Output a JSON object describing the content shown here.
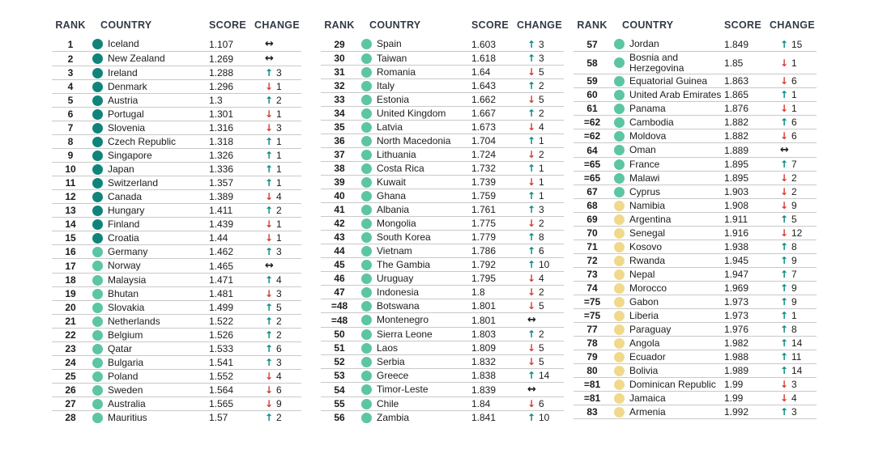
{
  "table": {
    "headers": {
      "rank": "RANK",
      "country": "COUNTRY",
      "score": "SCORE",
      "change": "CHANGE"
    },
    "tiers": {
      "very_high": "#10847a",
      "high": "#5cc5a4",
      "medium": "#f0d98b"
    },
    "change_colors": {
      "up": "#00897e",
      "down": "#d63c32",
      "same": "#1a1a1a"
    },
    "change_glyphs": {
      "up": "↑",
      "down": "↓",
      "same": "↔"
    },
    "columns": [
      {
        "rows": [
          {
            "rank": "1",
            "country": "Iceland",
            "score": "1.107",
            "tier": "very_high",
            "change_dir": "same",
            "change_value": ""
          },
          {
            "rank": "2",
            "country": "New Zealand",
            "score": "1.269",
            "tier": "very_high",
            "change_dir": "same",
            "change_value": ""
          },
          {
            "rank": "3",
            "country": "Ireland",
            "score": "1.288",
            "tier": "very_high",
            "change_dir": "up",
            "change_value": "3"
          },
          {
            "rank": "4",
            "country": "Denmark",
            "score": "1.296",
            "tier": "very_high",
            "change_dir": "down",
            "change_value": "1"
          },
          {
            "rank": "5",
            "country": "Austria",
            "score": "1.3",
            "tier": "very_high",
            "change_dir": "up",
            "change_value": "2"
          },
          {
            "rank": "6",
            "country": "Portugal",
            "score": "1.301",
            "tier": "very_high",
            "change_dir": "down",
            "change_value": "1"
          },
          {
            "rank": "7",
            "country": "Slovenia",
            "score": "1.316",
            "tier": "very_high",
            "change_dir": "down",
            "change_value": "3"
          },
          {
            "rank": "8",
            "country": "Czech Republic",
            "score": "1.318",
            "tier": "very_high",
            "change_dir": "up",
            "change_value": "1"
          },
          {
            "rank": "9",
            "country": "Singapore",
            "score": "1.326",
            "tier": "very_high",
            "change_dir": "up",
            "change_value": "1"
          },
          {
            "rank": "10",
            "country": "Japan",
            "score": "1.336",
            "tier": "very_high",
            "change_dir": "up",
            "change_value": "1"
          },
          {
            "rank": "11",
            "country": "Switzerland",
            "score": "1.357",
            "tier": "very_high",
            "change_dir": "up",
            "change_value": "1"
          },
          {
            "rank": "12",
            "country": "Canada",
            "score": "1.389",
            "tier": "very_high",
            "change_dir": "down",
            "change_value": "4"
          },
          {
            "rank": "13",
            "country": "Hungary",
            "score": "1.411",
            "tier": "very_high",
            "change_dir": "up",
            "change_value": "2"
          },
          {
            "rank": "14",
            "country": "Finland",
            "score": "1.439",
            "tier": "very_high",
            "change_dir": "down",
            "change_value": "1"
          },
          {
            "rank": "15",
            "country": "Croatia",
            "score": "1.44",
            "tier": "very_high",
            "change_dir": "down",
            "change_value": "1"
          },
          {
            "rank": "16",
            "country": "Germany",
            "score": "1.462",
            "tier": "high",
            "change_dir": "up",
            "change_value": "3"
          },
          {
            "rank": "17",
            "country": "Norway",
            "score": "1.465",
            "tier": "high",
            "change_dir": "same",
            "change_value": ""
          },
          {
            "rank": "18",
            "country": "Malaysia",
            "score": "1.471",
            "tier": "high",
            "change_dir": "up",
            "change_value": "4"
          },
          {
            "rank": "19",
            "country": "Bhutan",
            "score": "1.481",
            "tier": "high",
            "change_dir": "down",
            "change_value": "3"
          },
          {
            "rank": "20",
            "country": "Slovakia",
            "score": "1.499",
            "tier": "high",
            "change_dir": "up",
            "change_value": "5"
          },
          {
            "rank": "21",
            "country": "Netherlands",
            "score": "1.522",
            "tier": "high",
            "change_dir": "up",
            "change_value": "2"
          },
          {
            "rank": "22",
            "country": "Belgium",
            "score": "1.526",
            "tier": "high",
            "change_dir": "up",
            "change_value": "2"
          },
          {
            "rank": "23",
            "country": "Qatar",
            "score": "1.533",
            "tier": "high",
            "change_dir": "up",
            "change_value": "6"
          },
          {
            "rank": "24",
            "country": "Bulgaria",
            "score": "1.541",
            "tier": "high",
            "change_dir": "up",
            "change_value": "3"
          },
          {
            "rank": "25",
            "country": "Poland",
            "score": "1.552",
            "tier": "high",
            "change_dir": "down",
            "change_value": "4"
          },
          {
            "rank": "26",
            "country": "Sweden",
            "score": "1.564",
            "tier": "high",
            "change_dir": "down",
            "change_value": "6"
          },
          {
            "rank": "27",
            "country": "Australia",
            "score": "1.565",
            "tier": "high",
            "change_dir": "down",
            "change_value": "9"
          },
          {
            "rank": "28",
            "country": "Mauritius",
            "score": "1.57",
            "tier": "high",
            "change_dir": "up",
            "change_value": "2"
          }
        ]
      },
      {
        "rows": [
          {
            "rank": "29",
            "country": "Spain",
            "score": "1.603",
            "tier": "high",
            "change_dir": "up",
            "change_value": "3"
          },
          {
            "rank": "30",
            "country": "Taiwan",
            "score": "1.618",
            "tier": "high",
            "change_dir": "up",
            "change_value": "3"
          },
          {
            "rank": "31",
            "country": "Romania",
            "score": "1.64",
            "tier": "high",
            "change_dir": "down",
            "change_value": "5"
          },
          {
            "rank": "32",
            "country": "Italy",
            "score": "1.643",
            "tier": "high",
            "change_dir": "up",
            "change_value": "2"
          },
          {
            "rank": "33",
            "country": "Estonia",
            "score": "1.662",
            "tier": "high",
            "change_dir": "down",
            "change_value": "5"
          },
          {
            "rank": "34",
            "country": "United Kingdom",
            "score": "1.667",
            "tier": "high",
            "change_dir": "up",
            "change_value": "2"
          },
          {
            "rank": "35",
            "country": "Latvia",
            "score": "1.673",
            "tier": "high",
            "change_dir": "down",
            "change_value": "4"
          },
          {
            "rank": "36",
            "country": "North Macedonia",
            "score": "1.704",
            "tier": "high",
            "change_dir": "up",
            "change_value": "1"
          },
          {
            "rank": "37",
            "country": "Lithuania",
            "score": "1.724",
            "tier": "high",
            "change_dir": "down",
            "change_value": "2"
          },
          {
            "rank": "38",
            "country": "Costa Rica",
            "score": "1.732",
            "tier": "high",
            "change_dir": "up",
            "change_value": "1"
          },
          {
            "rank": "39",
            "country": "Kuwait",
            "score": "1.739",
            "tier": "high",
            "change_dir": "down",
            "change_value": "1"
          },
          {
            "rank": "40",
            "country": "Ghana",
            "score": "1.759",
            "tier": "high",
            "change_dir": "up",
            "change_value": "1"
          },
          {
            "rank": "41",
            "country": "Albania",
            "score": "1.761",
            "tier": "high",
            "change_dir": "up",
            "change_value": "3"
          },
          {
            "rank": "42",
            "country": "Mongolia",
            "score": "1.775",
            "tier": "high",
            "change_dir": "down",
            "change_value": "2"
          },
          {
            "rank": "43",
            "country": "South Korea",
            "score": "1.779",
            "tier": "high",
            "change_dir": "up",
            "change_value": "8"
          },
          {
            "rank": "44",
            "country": "Vietnam",
            "score": "1.786",
            "tier": "high",
            "change_dir": "up",
            "change_value": "6"
          },
          {
            "rank": "45",
            "country": "The Gambia",
            "score": "1.792",
            "tier": "high",
            "change_dir": "up",
            "change_value": "10"
          },
          {
            "rank": "46",
            "country": "Uruguay",
            "score": "1.795",
            "tier": "high",
            "change_dir": "down",
            "change_value": "4"
          },
          {
            "rank": "47",
            "country": "Indonesia",
            "score": "1.8",
            "tier": "high",
            "change_dir": "down",
            "change_value": "2"
          },
          {
            "rank": "=48",
            "country": "Botswana",
            "score": "1.801",
            "tier": "high",
            "change_dir": "down",
            "change_value": "5"
          },
          {
            "rank": "=48",
            "country": "Montenegro",
            "score": "1.801",
            "tier": "high",
            "change_dir": "same",
            "change_value": ""
          },
          {
            "rank": "50",
            "country": "Sierra Leone",
            "score": "1.803",
            "tier": "high",
            "change_dir": "up",
            "change_value": "2"
          },
          {
            "rank": "51",
            "country": "Laos",
            "score": "1.809",
            "tier": "high",
            "change_dir": "down",
            "change_value": "5"
          },
          {
            "rank": "52",
            "country": "Serbia",
            "score": "1.832",
            "tier": "high",
            "change_dir": "down",
            "change_value": "5"
          },
          {
            "rank": "53",
            "country": "Greece",
            "score": "1.838",
            "tier": "high",
            "change_dir": "up",
            "change_value": "14"
          },
          {
            "rank": "54",
            "country": "Timor-Leste",
            "score": "1.839",
            "tier": "high",
            "change_dir": "same",
            "change_value": ""
          },
          {
            "rank": "55",
            "country": "Chile",
            "score": "1.84",
            "tier": "high",
            "change_dir": "down",
            "change_value": "6"
          },
          {
            "rank": "56",
            "country": "Zambia",
            "score": "1.841",
            "tier": "high",
            "change_dir": "up",
            "change_value": "10"
          }
        ]
      },
      {
        "rows": [
          {
            "rank": "57",
            "country": "Jordan",
            "score": "1.849",
            "tier": "high",
            "change_dir": "up",
            "change_value": "15"
          },
          {
            "rank": "58",
            "country": "Bosnia and\nHerzegovina",
            "score": "1.85",
            "tier": "high",
            "change_dir": "down",
            "change_value": "1"
          },
          {
            "rank": "59",
            "country": "Equatorial Guinea",
            "score": "1.863",
            "tier": "high",
            "change_dir": "down",
            "change_value": "6"
          },
          {
            "rank": "60",
            "country": "United Arab Emirates",
            "score": "1.865",
            "tier": "high",
            "change_dir": "up",
            "change_value": "1"
          },
          {
            "rank": "61",
            "country": "Panama",
            "score": "1.876",
            "tier": "high",
            "change_dir": "down",
            "change_value": "1"
          },
          {
            "rank": "=62",
            "country": "Cambodia",
            "score": "1.882",
            "tier": "high",
            "change_dir": "up",
            "change_value": "6"
          },
          {
            "rank": "=62",
            "country": "Moldova",
            "score": "1.882",
            "tier": "high",
            "change_dir": "down",
            "change_value": "6"
          },
          {
            "rank": "64",
            "country": "Oman",
            "score": "1.889",
            "tier": "high",
            "change_dir": "same",
            "change_value": ""
          },
          {
            "rank": "=65",
            "country": "France",
            "score": "1.895",
            "tier": "high",
            "change_dir": "up",
            "change_value": "7"
          },
          {
            "rank": "=65",
            "country": "Malawi",
            "score": "1.895",
            "tier": "high",
            "change_dir": "down",
            "change_value": "2"
          },
          {
            "rank": "67",
            "country": "Cyprus",
            "score": "1.903",
            "tier": "high",
            "change_dir": "down",
            "change_value": "2"
          },
          {
            "rank": "68",
            "country": "Namibia",
            "score": "1.908",
            "tier": "medium",
            "change_dir": "down",
            "change_value": "9"
          },
          {
            "rank": "69",
            "country": "Argentina",
            "score": "1.911",
            "tier": "medium",
            "change_dir": "up",
            "change_value": "5"
          },
          {
            "rank": "70",
            "country": "Senegal",
            "score": "1.916",
            "tier": "medium",
            "change_dir": "down",
            "change_value": "12"
          },
          {
            "rank": "71",
            "country": "Kosovo",
            "score": "1.938",
            "tier": "medium",
            "change_dir": "up",
            "change_value": "8"
          },
          {
            "rank": "72",
            "country": "Rwanda",
            "score": "1.945",
            "tier": "medium",
            "change_dir": "up",
            "change_value": "9"
          },
          {
            "rank": "73",
            "country": "Nepal",
            "score": "1.947",
            "tier": "medium",
            "change_dir": "up",
            "change_value": "7"
          },
          {
            "rank": "74",
            "country": "Morocco",
            "score": "1.969",
            "tier": "medium",
            "change_dir": "up",
            "change_value": "9"
          },
          {
            "rank": "=75",
            "country": "Gabon",
            "score": "1.973",
            "tier": "medium",
            "change_dir": "up",
            "change_value": "9"
          },
          {
            "rank": "=75",
            "country": "Liberia",
            "score": "1.973",
            "tier": "medium",
            "change_dir": "up",
            "change_value": "1"
          },
          {
            "rank": "77",
            "country": "Paraguay",
            "score": "1.976",
            "tier": "medium",
            "change_dir": "up",
            "change_value": "8"
          },
          {
            "rank": "78",
            "country": "Angola",
            "score": "1.982",
            "tier": "medium",
            "change_dir": "up",
            "change_value": "14"
          },
          {
            "rank": "79",
            "country": "Ecuador",
            "score": "1.988",
            "tier": "medium",
            "change_dir": "up",
            "change_value": "11"
          },
          {
            "rank": "80",
            "country": "Bolivia",
            "score": "1.989",
            "tier": "medium",
            "change_dir": "up",
            "change_value": "14"
          },
          {
            "rank": "=81",
            "country": "Dominican Republic",
            "score": "1.99",
            "tier": "medium",
            "change_dir": "down",
            "change_value": "3"
          },
          {
            "rank": "=81",
            "country": "Jamaica",
            "score": "1.99",
            "tier": "medium",
            "change_dir": "down",
            "change_value": "4"
          },
          {
            "rank": "83",
            "country": "Armenia",
            "score": "1.992",
            "tier": "medium",
            "change_dir": "up",
            "change_value": "3"
          }
        ]
      }
    ]
  }
}
